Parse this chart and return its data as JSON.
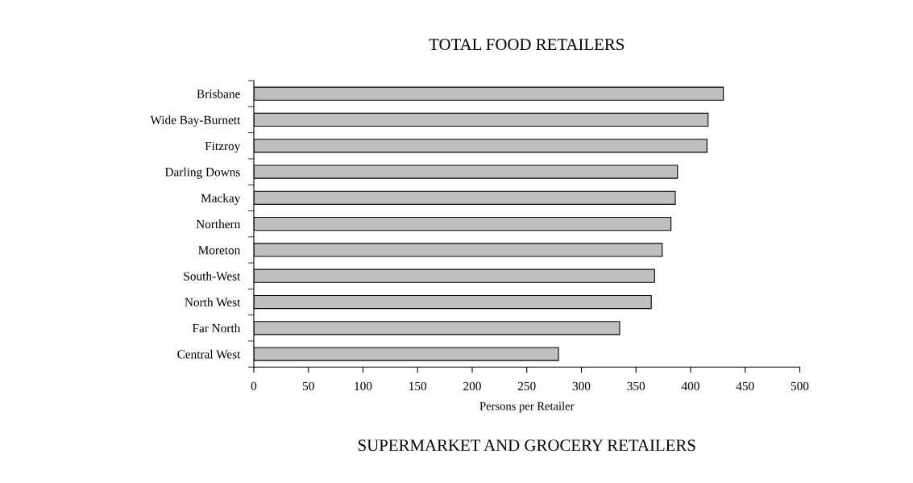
{
  "chart_data": {
    "type": "bar",
    "orientation": "horizontal",
    "title": "TOTAL FOOD RETAILERS",
    "xlabel": "Persons per Retailer",
    "categories": [
      "Brisbane",
      "Wide Bay-Burnett",
      "Fitzroy",
      "Darling Downs",
      "Mackay",
      "Northern",
      "Moreton",
      "South-West",
      "North West",
      "Far North",
      "Central West"
    ],
    "values": [
      430,
      416,
      415,
      388,
      386,
      382,
      374,
      367,
      364,
      335,
      279
    ],
    "color": "#c0c0c0",
    "xlim": [
      0,
      500
    ],
    "xticks": [
      0,
      50,
      100,
      150,
      200,
      250,
      300,
      350,
      400,
      450,
      500
    ],
    "grid": false,
    "legend": false,
    "annotations": [
      "SUPERMARKET AND GROCERY RETAILERS"
    ]
  }
}
